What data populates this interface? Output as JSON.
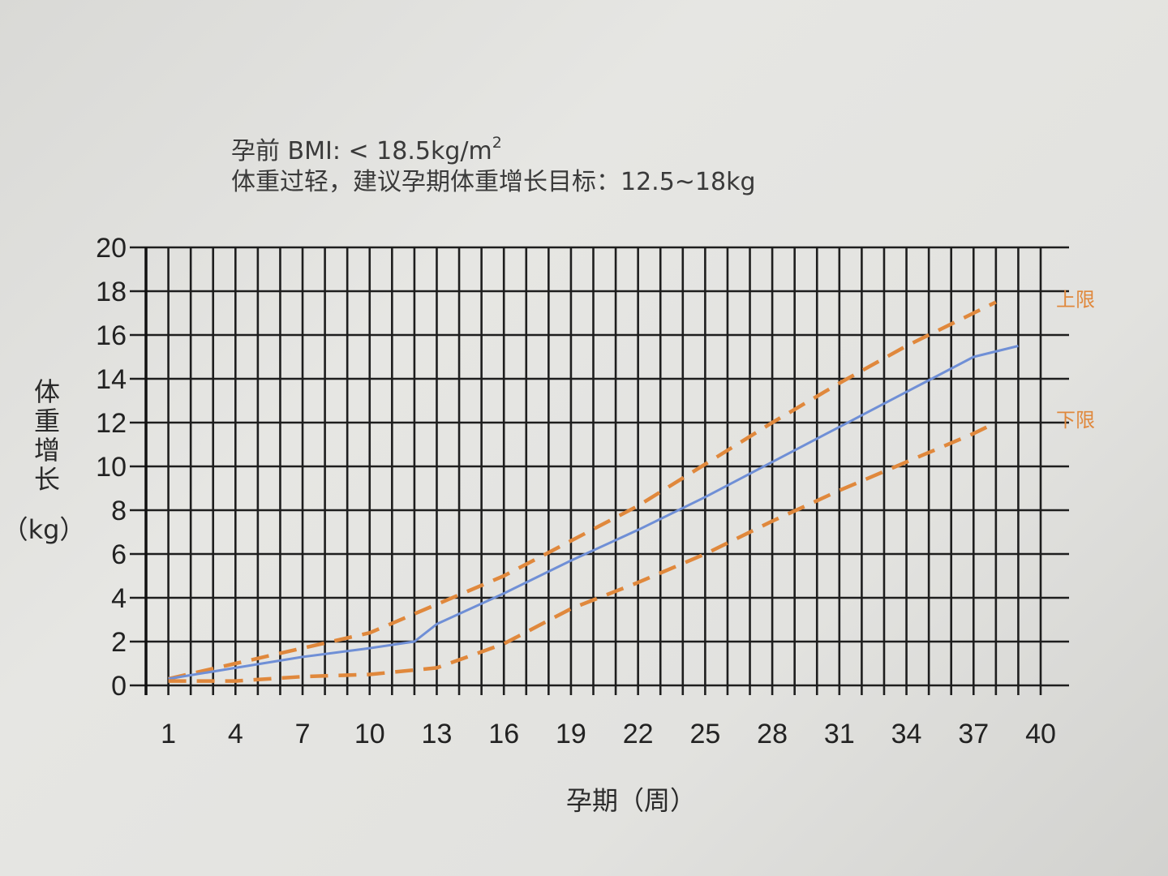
{
  "caption": {
    "line1_main": "孕前 BMI: < 18.5kg/m",
    "line1_sup": "2",
    "line2": "体重过轻，建议孕期体重增长目标：12.5~18kg"
  },
  "chart_data": {
    "type": "line",
    "xlabel": "孕期（周）",
    "ylabel_chars": [
      "体",
      "重",
      "增",
      "长"
    ],
    "ylabel_unit": "（kg）",
    "xlim": [
      0,
      40
    ],
    "ylim": [
      0,
      20
    ],
    "x_ticks": [
      1,
      4,
      7,
      10,
      13,
      16,
      19,
      22,
      25,
      28,
      31,
      34,
      37,
      40
    ],
    "y_ticks": [
      0,
      2,
      4,
      6,
      8,
      10,
      12,
      14,
      16,
      18,
      20
    ],
    "grid": true,
    "series": [
      {
        "name": "上限",
        "style": "dashed",
        "color": "#e0883c",
        "points": [
          [
            1,
            0.3
          ],
          [
            4,
            1.0
          ],
          [
            7,
            1.7
          ],
          [
            10,
            2.4
          ],
          [
            13,
            3.7
          ],
          [
            16,
            5.0
          ],
          [
            19,
            6.6
          ],
          [
            22,
            8.2
          ],
          [
            25,
            10.1
          ],
          [
            28,
            12.0
          ],
          [
            31,
            13.8
          ],
          [
            34,
            15.5
          ],
          [
            37,
            17.0
          ],
          [
            38,
            17.5
          ]
        ]
      },
      {
        "name": "",
        "style": "solid",
        "color": "#6f8fd6",
        "points": [
          [
            1,
            0.3
          ],
          [
            4,
            0.8
          ],
          [
            7,
            1.3
          ],
          [
            10,
            1.7
          ],
          [
            12,
            2.0
          ],
          [
            13,
            2.8
          ],
          [
            16,
            4.2
          ],
          [
            19,
            5.7
          ],
          [
            22,
            7.1
          ],
          [
            25,
            8.6
          ],
          [
            28,
            10.2
          ],
          [
            31,
            11.8
          ],
          [
            34,
            13.4
          ],
          [
            37,
            15.0
          ],
          [
            39,
            15.5
          ]
        ]
      },
      {
        "name": "下限",
        "style": "dashed",
        "color": "#e0883c",
        "points": [
          [
            1,
            0.2
          ],
          [
            4,
            0.2
          ],
          [
            7,
            0.4
          ],
          [
            10,
            0.5
          ],
          [
            13,
            0.8
          ],
          [
            16,
            1.9
          ],
          [
            19,
            3.5
          ],
          [
            22,
            4.7
          ],
          [
            25,
            6.0
          ],
          [
            28,
            7.5
          ],
          [
            31,
            8.9
          ],
          [
            34,
            10.2
          ],
          [
            37,
            11.5
          ],
          [
            38,
            12.0
          ]
        ]
      }
    ]
  }
}
